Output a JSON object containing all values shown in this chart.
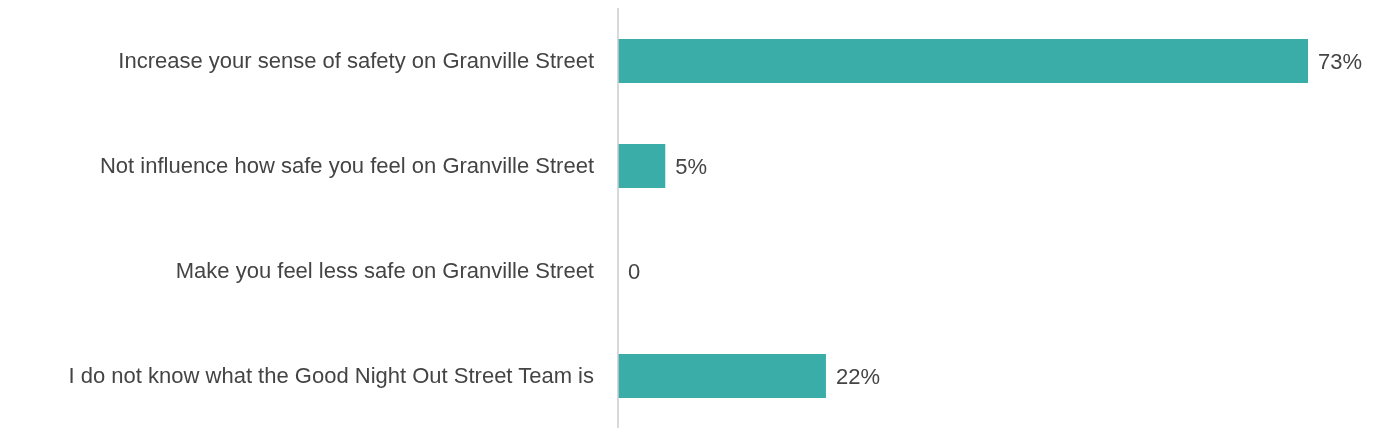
{
  "chart_data": {
    "type": "bar",
    "orientation": "horizontal",
    "categories": [
      "Increase your sense of safety on Granville Street",
      "Not influence how safe you feel on Granville Street",
      "Make you feel less safe on Granville Street",
      "I do not know what the Good Night Out Street Team is"
    ],
    "values": [
      73,
      5,
      0,
      22
    ],
    "value_labels": [
      "73%",
      "5%",
      "0",
      "22%"
    ],
    "color": "#3aada9"
  }
}
